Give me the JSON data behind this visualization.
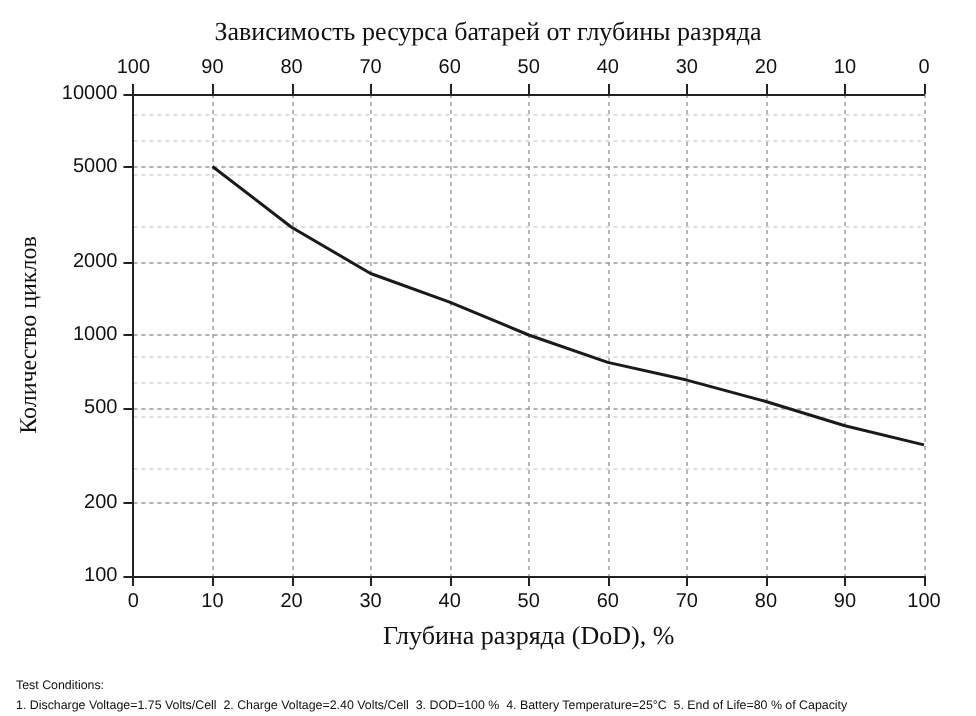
{
  "chart_data": {
    "type": "line",
    "title": "Зависимость ресурса батарей от глубины разряда",
    "xlabel": "Глубина разряда (DoD), %",
    "ylabel": "Количество циклов",
    "x": [
      10,
      20,
      30,
      40,
      50,
      60,
      70,
      80,
      90,
      100
    ],
    "series": [
      {
        "color": "#1a1a1a",
        "values": [
          5000,
          2800,
          1800,
          1370,
          1000,
          770,
          650,
          530,
          420,
          350
        ]
      }
    ],
    "xlim": [
      0,
      100
    ],
    "xticks": [
      0,
      10,
      20,
      30,
      40,
      50,
      60,
      70,
      80,
      90,
      100
    ],
    "x2lim": [
      100,
      0
    ],
    "x2ticks": [
      100,
      90,
      80,
      70,
      60,
      50,
      40,
      30,
      20,
      10,
      0
    ],
    "ylim": [
      100,
      10000
    ],
    "yticks": [
      100,
      200,
      500,
      1000,
      2000,
      5000,
      10000
    ],
    "log": "y",
    "grid": true,
    "marker": "none",
    "line_style": "solid",
    "annotations": [
      "Test Conditions:",
      "1. Discharge Voltage=1.75 Volts/Cell  2. Charge Voltage=2.40 Volts/Cell  3. DOD=100 %  4. Battery Temperature=25°C  5. End of Life=80 % of Capacity"
    ]
  }
}
